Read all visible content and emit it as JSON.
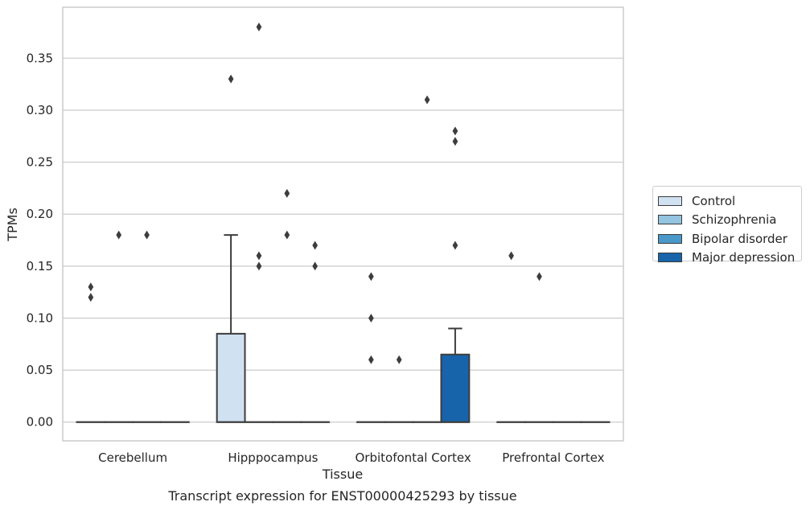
{
  "chart_data": {
    "type": "box",
    "title": "Transcript expression for ENST00000425293 by tissue",
    "xlabel": "Tissue",
    "ylabel": "TPMs",
    "ylim": [
      -0.018,
      0.399
    ],
    "yticks": [
      "0.00",
      "0.05",
      "0.10",
      "0.15",
      "0.20",
      "0.25",
      "0.30",
      "0.35"
    ],
    "categories": [
      "Cerebellum",
      "Hipppocampus",
      "Orbitofontal Cortex",
      "Prefrontal Cortex"
    ],
    "grid": "horizontal",
    "legend_position": "right",
    "series": [
      {
        "name": "Control",
        "color": "#d0e1f2",
        "boxes": [
          {
            "q1": 0,
            "median": 0,
            "q3": 0,
            "whisker_low": 0,
            "whisker_high": 0,
            "outliers": [
              0.13,
              0.12
            ]
          },
          {
            "q1": 0,
            "median": 0,
            "q3": 0.085,
            "whisker_low": 0,
            "whisker_high": 0.18,
            "outliers": [
              0.33
            ]
          },
          {
            "q1": 0,
            "median": 0,
            "q3": 0,
            "whisker_low": 0,
            "whisker_high": 0,
            "outliers": [
              0.14,
              0.1,
              0.06
            ]
          },
          {
            "q1": 0,
            "median": 0,
            "q3": 0,
            "whisker_low": 0,
            "whisker_high": 0,
            "outliers": [
              0.16
            ]
          }
        ]
      },
      {
        "name": "Schizophrenia",
        "color": "#94c4df",
        "boxes": [
          {
            "q1": 0,
            "median": 0,
            "q3": 0,
            "whisker_low": 0,
            "whisker_high": 0,
            "outliers": [
              0.18
            ]
          },
          {
            "q1": 0,
            "median": 0,
            "q3": 0,
            "whisker_low": 0,
            "whisker_high": 0,
            "outliers": [
              0.38,
              0.16,
              0.15
            ]
          },
          {
            "q1": 0,
            "median": 0,
            "q3": 0,
            "whisker_low": 0,
            "whisker_high": 0,
            "outliers": [
              0.06
            ]
          },
          {
            "q1": 0,
            "median": 0,
            "q3": 0,
            "whisker_low": 0,
            "whisker_high": 0,
            "outliers": [
              0.14
            ]
          }
        ]
      },
      {
        "name": "Bipolar disorder",
        "color": "#4a98c9",
        "boxes": [
          {
            "q1": 0,
            "median": 0,
            "q3": 0,
            "whisker_low": 0,
            "whisker_high": 0,
            "outliers": [
              0.18
            ]
          },
          {
            "q1": 0,
            "median": 0,
            "q3": 0,
            "whisker_low": 0,
            "whisker_high": 0,
            "outliers": [
              0.22,
              0.18
            ]
          },
          {
            "q1": 0,
            "median": 0,
            "q3": 0,
            "whisker_low": 0,
            "whisker_high": 0,
            "outliers": [
              0.31
            ]
          },
          {
            "q1": 0,
            "median": 0,
            "q3": 0,
            "whisker_low": 0,
            "whisker_high": 0,
            "outliers": []
          }
        ]
      },
      {
        "name": "Major depression",
        "color": "#1764ab",
        "boxes": [
          {
            "q1": 0,
            "median": 0,
            "q3": 0,
            "whisker_low": 0,
            "whisker_high": 0,
            "outliers": []
          },
          {
            "q1": 0,
            "median": 0,
            "q3": 0,
            "whisker_low": 0,
            "whisker_high": 0,
            "outliers": [
              0.17,
              0.15
            ]
          },
          {
            "q1": 0,
            "median": 0,
            "q3": 0.065,
            "whisker_low": 0,
            "whisker_high": 0.09,
            "outliers": [
              0.28,
              0.27,
              0.17
            ]
          },
          {
            "q1": 0,
            "median": 0,
            "q3": 0,
            "whisker_low": 0,
            "whisker_high": 0,
            "outliers": []
          }
        ]
      }
    ]
  }
}
